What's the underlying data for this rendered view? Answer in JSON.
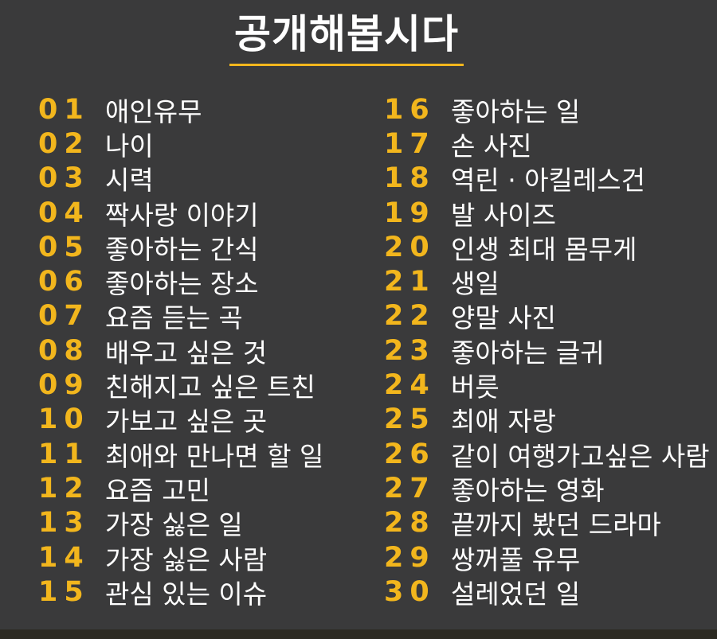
{
  "title": "공개해봅시다",
  "colors": {
    "accent": "#f2b61d",
    "background": "#3a3a3b",
    "text": "#ffffff"
  },
  "left": [
    {
      "num": "01",
      "label": "애인유무"
    },
    {
      "num": "02",
      "label": "나이"
    },
    {
      "num": "03",
      "label": "시력"
    },
    {
      "num": "04",
      "label": "짝사랑 이야기"
    },
    {
      "num": "05",
      "label": "좋아하는 간식"
    },
    {
      "num": "06",
      "label": "좋아하는 장소"
    },
    {
      "num": "07",
      "label": "요즘 듣는 곡"
    },
    {
      "num": "08",
      "label": "배우고 싶은 것"
    },
    {
      "num": "09",
      "label": "친해지고 싶은 트친"
    },
    {
      "num": "10",
      "label": "가보고 싶은 곳"
    },
    {
      "num": "11",
      "label": "최애와 만나면 할 일"
    },
    {
      "num": "12",
      "label": "요즘 고민"
    },
    {
      "num": "13",
      "label": "가장 싫은 일"
    },
    {
      "num": "14",
      "label": "가장 싫은 사람"
    },
    {
      "num": "15",
      "label": "관심 있는 이슈"
    }
  ],
  "right": [
    {
      "num": "16",
      "label": "좋아하는 일"
    },
    {
      "num": "17",
      "label": "손 사진"
    },
    {
      "num": "18",
      "label": "역린 · 아킬레스건"
    },
    {
      "num": "19",
      "label": "발 사이즈"
    },
    {
      "num": "20",
      "label": "인생 최대 몸무게"
    },
    {
      "num": "21",
      "label": "생일"
    },
    {
      "num": "22",
      "label": "양말 사진"
    },
    {
      "num": "23",
      "label": "좋아하는 글귀"
    },
    {
      "num": "24",
      "label": "버릇"
    },
    {
      "num": "25",
      "label": "최애 자랑"
    },
    {
      "num": "26",
      "label": "같이 여행가고싶은 사람"
    },
    {
      "num": "27",
      "label": "좋아하는 영화"
    },
    {
      "num": "28",
      "label": "끝까지 봤던 드라마"
    },
    {
      "num": "29",
      "label": "쌍꺼풀 유무"
    },
    {
      "num": "30",
      "label": "설레었던 일"
    }
  ]
}
